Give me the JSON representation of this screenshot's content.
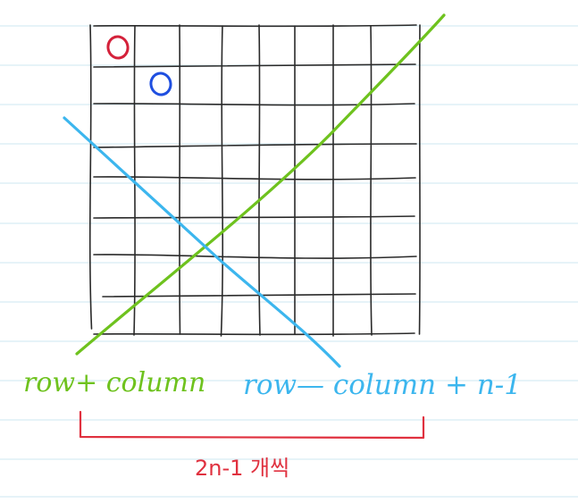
{
  "colors": {
    "background": "#ffffff",
    "ruled_lines": "#d6ecf3",
    "grid_ink": "#2a2a2a",
    "marker_red": "#d4213a",
    "marker_blue": "#1f4fe0",
    "diag_green": "#6ec21e",
    "anti_diag_blue": "#3cb6ee",
    "brace_red": "#e0313f"
  },
  "board": {
    "rows": 8,
    "cols": 8
  },
  "markers": [
    {
      "name": "red-circle-marker",
      "row": 0,
      "col": 0,
      "color": "#d4213a"
    },
    {
      "name": "blue-circle-marker",
      "row": 1,
      "col": 1,
      "color": "#1f4fe0"
    }
  ],
  "labels": {
    "sum_diagonal": "row+ column",
    "diff_diagonal": "row— column + n-1",
    "count_note": "2n-1 개씩"
  }
}
